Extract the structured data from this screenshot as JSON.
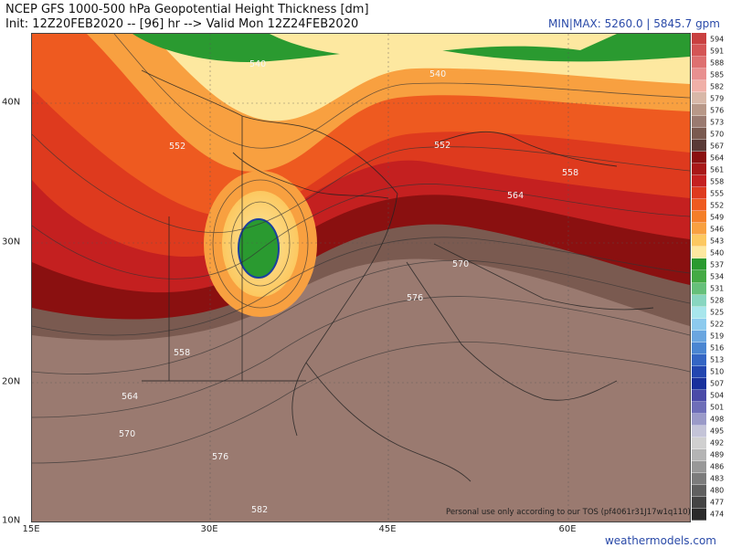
{
  "header": {
    "title": "NCEP GFS 1000-500 hPa Geopotential Height Thickness [dm]",
    "init": "Init: 12Z20FEB2020 -- [96] hr --> Valid Mon 12Z24FEB2020",
    "minmax": "MIN|MAX: 5260.0 | 5845.7 gpm"
  },
  "map": {
    "lon_labels": [
      "15E",
      "30E",
      "45E",
      "60E"
    ],
    "lat_labels": [
      "40N",
      "30N",
      "20N",
      "10N"
    ],
    "contour_labels": [
      "540",
      "540",
      "552",
      "558",
      "564",
      "570",
      "576",
      "558",
      "564",
      "570",
      "576",
      "582",
      "552"
    ]
  },
  "colorbar": {
    "levels": [
      "594",
      "591",
      "588",
      "585",
      "582",
      "579",
      "576",
      "573",
      "570",
      "567",
      "564",
      "561",
      "558",
      "555",
      "552",
      "549",
      "546",
      "543",
      "540",
      "537",
      "534",
      "531",
      "528",
      "525",
      "522",
      "519",
      "516",
      "513",
      "510",
      "507",
      "504",
      "501",
      "498",
      "495",
      "492",
      "489",
      "486",
      "483",
      "480",
      "477",
      "474"
    ],
    "colors": [
      "#c94040",
      "#d45555",
      "#de7070",
      "#e89090",
      "#f0b0a8",
      "#d8b8a8",
      "#b89888",
      "#9a7a70",
      "#7a5a50",
      "#5a3a36",
      "#8a1010",
      "#a81818",
      "#c42020",
      "#de3a1e",
      "#ee5a20",
      "#f47e28",
      "#f8a040",
      "#fcc860",
      "#fde8a0",
      "#2a9a30",
      "#44aa44",
      "#66c07a",
      "#88d6c0",
      "#a8e6ec",
      "#8ccaee",
      "#6aa6e0",
      "#4a86d2",
      "#3466c4",
      "#2246b0",
      "#18309c",
      "#4a4aa8",
      "#6e6eb8",
      "#9a9ac8",
      "#c4c4d8",
      "#d0d0d0",
      "#b4b4b4",
      "#989898",
      "#7c7c7c",
      "#606060",
      "#444444",
      "#2a2a2a"
    ]
  },
  "footer": {
    "credit": "weathermodels.com",
    "tos": "Personal use only according to our TOS (pf4061r31J17w1q110)"
  }
}
